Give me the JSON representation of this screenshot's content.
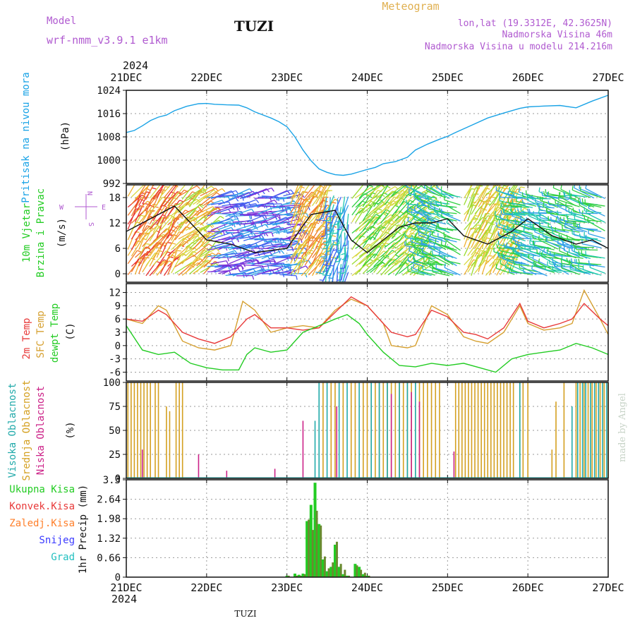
{
  "header": {
    "model_label": "Model",
    "model_name": "wrf-nmm_v3.9.1 e1km",
    "station": "TUZI",
    "product": "Meteogram",
    "lonlat": "lon,lat (19.3312E, 42.3625N)",
    "altitude": "Nadmorska Visina 46m",
    "model_altitude": "Nadmorska Visina u modelu 214.216m",
    "year_top": "2024",
    "year_bottom": "2024",
    "footer_station": "TUZI",
    "credit": "made by Angel"
  },
  "colors": {
    "pressure": "#1aa3e6",
    "temp2m": "#e83a3a",
    "sfc": "#d6a030",
    "dewpt": "#22cc22",
    "high_cloud": "#22aaaa",
    "mid_cloud": "#d4a020",
    "low_cloud": "#cc2288",
    "total_precip": "#22cc22",
    "conv_precip": "#e83a3a",
    "frz_precip": "#ff7f2a",
    "snow": "#3a3aff",
    "graupel": "#22c0c0",
    "model_text": "#b05ad0",
    "product_text": "#e0b050"
  },
  "chart_data": [
    {
      "type": "line",
      "panel": "pressure",
      "ylabel": [
        "Pritisak na nivou mora",
        "(hPa)"
      ],
      "ylim": [
        992,
        1024
      ],
      "yticks": [
        "992",
        "1000",
        "1008",
        "1016",
        "1024"
      ],
      "x_days": [
        "21DEC",
        "22DEC",
        "23DEC",
        "24DEC",
        "25DEC",
        "26DEC",
        "27DEC"
      ],
      "grid": true,
      "series": [
        {
          "color_key": "pressure",
          "x": [
            0,
            0.1,
            0.2,
            0.3,
            0.4,
            0.5,
            0.6,
            0.75,
            0.9,
            1.0,
            1.1,
            1.25,
            1.4,
            1.5,
            1.6,
            1.8,
            1.9,
            2.0,
            2.1,
            2.2,
            2.3,
            2.4,
            2.5,
            2.6,
            2.7,
            2.8,
            2.9,
            3.0,
            3.1,
            3.2,
            3.35,
            3.5,
            3.6,
            3.75,
            3.9,
            4.0,
            4.1,
            4.3,
            4.5,
            4.7,
            4.9,
            5.0,
            5.2,
            5.4,
            5.6,
            5.8,
            6.0
          ],
          "values": [
            1009.5,
            1010.2,
            1011.8,
            1013.6,
            1014.8,
            1015.5,
            1017.0,
            1018.5,
            1019.4,
            1019.5,
            1019.2,
            1019.0,
            1018.9,
            1018.0,
            1016.6,
            1014.5,
            1013.2,
            1011.5,
            1008.0,
            1003.5,
            999.8,
            997.0,
            995.8,
            995.0,
            994.8,
            995.2,
            996.0,
            996.8,
            997.5,
            998.8,
            999.5,
            1001.0,
            1003.5,
            1005.5,
            1007.2,
            1008.2,
            1009.5,
            1012.0,
            1014.5,
            1016.2,
            1017.8,
            1018.3,
            1018.6,
            1018.8,
            1018.0,
            1020.3,
            1022.3
          ]
        }
      ]
    },
    {
      "type": "wind_barbs",
      "panel": "wind",
      "ylabel": [
        "10m Vjetar",
        "Brzina i Pravac",
        "(m/s)"
      ],
      "ylim": [
        -2,
        21
      ],
      "yticks": [
        "0",
        "6",
        "12",
        "18"
      ],
      "compass": [
        "N",
        "E",
        "S",
        "W"
      ],
      "speed_series": {
        "x": [
          0,
          0.3,
          0.6,
          0.8,
          1.0,
          1.3,
          1.6,
          2.0,
          2.3,
          2.6,
          2.8,
          3.0,
          3.2,
          3.4,
          3.6,
          3.8,
          4.0,
          4.2,
          4.5,
          4.8,
          5.0,
          5.3,
          5.6,
          5.8,
          6.0
        ],
        "values": [
          10,
          13,
          16,
          12,
          8,
          7,
          5,
          6,
          14,
          15,
          8,
          5,
          8,
          11,
          12,
          12,
          13,
          9,
          7,
          10,
          13,
          9,
          7,
          8,
          6
        ]
      }
    },
    {
      "type": "line",
      "panel": "temperature",
      "ylabel": [
        "2m Temp",
        "SFC Temp",
        "dewpt Temp",
        "(C)"
      ],
      "ylim": [
        -8,
        14
      ],
      "yticks": [
        "-6",
        "-3",
        "0",
        "3",
        "6",
        "9",
        "12"
      ],
      "grid": true,
      "series": [
        {
          "color_key": "temp2m",
          "x": [
            0,
            0.2,
            0.4,
            0.5,
            0.7,
            0.9,
            1.1,
            1.3,
            1.5,
            1.6,
            1.8,
            2.0,
            2.2,
            2.4,
            2.6,
            2.8,
            3.0,
            3.2,
            3.3,
            3.5,
            3.6,
            3.8,
            4.0,
            4.2,
            4.35,
            4.5,
            4.7,
            4.9,
            5.0,
            5.2,
            5.4,
            5.55,
            5.7,
            5.9,
            6.0
          ],
          "values": [
            6,
            5.5,
            8,
            7,
            3,
            1.5,
            0.5,
            2,
            6,
            7,
            4,
            4,
            3.5,
            4,
            7.5,
            11,
            9,
            5,
            3,
            2,
            2.5,
            8,
            6.5,
            3,
            2.5,
            1.5,
            4,
            9.5,
            5.5,
            4,
            5,
            6,
            9.5,
            6,
            4.5
          ]
        },
        {
          "color_key": "sfc",
          "x": [
            0,
            0.2,
            0.4,
            0.5,
            0.7,
            0.9,
            1.1,
            1.3,
            1.45,
            1.6,
            1.8,
            2.0,
            2.2,
            2.4,
            2.6,
            2.8,
            3.0,
            3.2,
            3.3,
            3.5,
            3.6,
            3.8,
            4.0,
            4.2,
            4.35,
            4.5,
            4.7,
            4.9,
            5.0,
            5.2,
            5.4,
            5.55,
            5.7,
            5.9,
            6.0
          ],
          "values": [
            6,
            5,
            9,
            8,
            1,
            -0.5,
            -1,
            0,
            10,
            8,
            3,
            4,
            4.5,
            4,
            8,
            10.5,
            9,
            5,
            0,
            -0.5,
            0,
            9,
            7,
            2,
            1,
            0.5,
            3,
            9,
            5,
            3.5,
            4,
            5,
            12.5,
            6,
            2.5
          ]
        },
        {
          "color_key": "dewpt",
          "x": [
            0,
            0.2,
            0.4,
            0.6,
            0.8,
            1.0,
            1.2,
            1.4,
            1.5,
            1.6,
            1.8,
            2.0,
            2.2,
            2.4,
            2.6,
            2.75,
            2.9,
            3.0,
            3.2,
            3.4,
            3.6,
            3.8,
            4.0,
            4.2,
            4.4,
            4.6,
            4.8,
            5.0,
            5.2,
            5.4,
            5.6,
            5.8,
            6.0
          ],
          "values": [
            4.5,
            -1,
            -2,
            -1.5,
            -4,
            -5,
            -5.5,
            -5.5,
            -2,
            -0.5,
            -1.5,
            -1,
            3,
            4.5,
            6,
            7,
            5,
            2.5,
            -1.5,
            -4.5,
            -4.8,
            -4,
            -4.5,
            -4,
            -5,
            -6,
            -3,
            -2,
            -1.5,
            -1,
            0.5,
            -0.5,
            -2
          ]
        }
      ]
    },
    {
      "type": "bar",
      "panel": "cloud",
      "ylabel": [
        "Visoka Oblacnost",
        "Srednja Oblacnost",
        "Niska Oblacnost",
        "(%)"
      ],
      "ylim": [
        0,
        100
      ],
      "yticks": [
        "0",
        "25",
        "50",
        "75",
        "100"
      ],
      "grid": true,
      "mid_x": [
        0.02,
        0.06,
        0.1,
        0.14,
        0.18,
        0.22,
        0.26,
        0.3,
        0.36,
        0.4,
        0.5,
        0.54,
        0.62,
        0.66,
        0.7,
        2.45,
        2.55,
        2.6,
        2.7,
        2.8,
        2.85,
        2.95,
        3.0,
        3.05,
        3.1,
        3.15,
        3.2,
        3.25,
        3.3,
        3.35,
        3.4,
        3.45,
        3.5,
        3.55,
        3.6,
        3.65,
        3.7,
        3.75,
        3.8,
        3.85,
        3.9,
        4.1,
        4.14,
        4.18,
        4.22,
        4.26,
        4.3,
        4.34,
        4.38,
        4.42,
        4.46,
        4.5,
        4.54,
        4.58,
        4.62,
        4.66,
        4.7,
        4.74,
        4.78,
        4.82,
        4.9,
        4.94,
        5.0,
        5.3,
        5.35,
        5.45,
        5.6,
        5.65,
        5.7,
        5.75,
        5.8,
        5.85,
        5.9,
        5.95,
        6.0
      ],
      "mid_values": [
        100,
        100,
        100,
        100,
        100,
        100,
        100,
        100,
        100,
        100,
        75,
        70,
        100,
        100,
        100,
        100,
        100,
        100,
        100,
        100,
        100,
        100,
        100,
        100,
        100,
        100,
        100,
        100,
        100,
        100,
        100,
        100,
        100,
        100,
        100,
        100,
        100,
        100,
        100,
        100,
        100,
        100,
        100,
        100,
        100,
        100,
        100,
        100,
        100,
        100,
        100,
        100,
        100,
        100,
        100,
        100,
        100,
        100,
        100,
        100,
        100,
        100,
        100,
        30,
        80,
        100,
        100,
        100,
        100,
        100,
        100,
        100,
        100,
        100,
        100
      ],
      "high_x": [
        2.35,
        2.4,
        2.5,
        2.65,
        2.75,
        2.9,
        3.05,
        3.15,
        3.25,
        3.4,
        3.5,
        3.6,
        4.9,
        5.55,
        5.62,
        5.68,
        5.72,
        5.78,
        5.83,
        5.88,
        5.93,
        5.98
      ],
      "high_values": [
        60,
        100,
        100,
        100,
        100,
        100,
        100,
        100,
        100,
        100,
        100,
        100,
        100,
        75,
        100,
        100,
        100,
        100,
        100,
        100,
        100,
        100
      ],
      "low_x": [
        0.2,
        0.9,
        1.25,
        1.85,
        2.2,
        2.62,
        3.3,
        3.55,
        3.65,
        4.08
      ],
      "low_values": [
        30,
        25,
        8,
        10,
        60,
        75,
        88,
        90,
        80,
        28
      ]
    },
    {
      "type": "bar",
      "panel": "precip",
      "ylabel": [
        "1hr Precip (mm)"
      ],
      "ylim": [
        0,
        3.3
      ],
      "yticks": [
        "0",
        "0.66",
        "1.32",
        "1.98",
        "2.64",
        "3.3"
      ],
      "legend": [
        "Ukupna Kisa",
        "Konvek.Kisa",
        "Zaledj.Kisa",
        "Snijeg",
        "Grad"
      ],
      "grid": true,
      "x": [
        2.0,
        2.1,
        2.15,
        2.2,
        2.25,
        2.3,
        2.35,
        2.4,
        2.45,
        2.5,
        2.55,
        2.6,
        2.65,
        2.7,
        2.75,
        2.85,
        2.9,
        2.95,
        3.0
      ],
      "total": [
        0.05,
        0.12,
        0.08,
        0.12,
        1.9,
        2.45,
        3.2,
        1.8,
        0.6,
        0.2,
        0.35,
        1.1,
        0.35,
        0.1,
        0.05,
        0.45,
        0.35,
        0.1,
        0.05
      ],
      "convective": [
        0.05,
        0.05,
        0.05,
        0.1,
        1.95,
        1.6,
        2.25,
        1.75,
        0.7,
        0.3,
        0.5,
        1.2,
        0.45,
        0.25,
        0.05,
        0.4,
        0.25,
        0.15,
        0.05
      ]
    }
  ]
}
